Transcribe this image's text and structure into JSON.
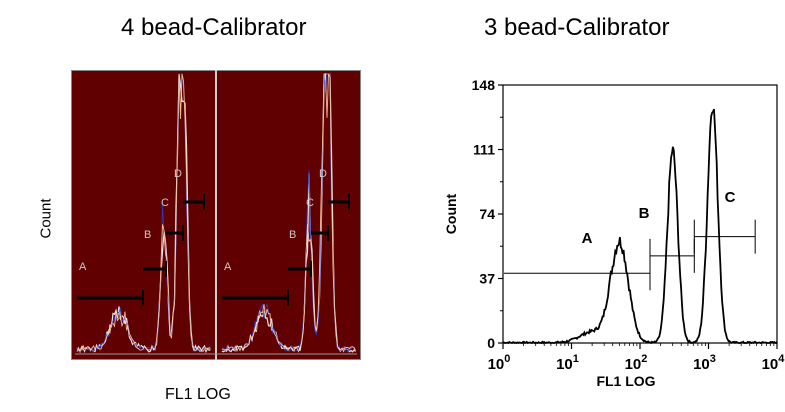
{
  "chart_data": [
    {
      "type": "line",
      "title": "4 bead-Calibrator",
      "xlabel": "FL1 LOG",
      "ylabel": "Count",
      "background": "#600000",
      "line_colors": [
        "#ffffff",
        "#2a3cc8",
        "#ffd0a0"
      ],
      "note": "",
      "panels": 2,
      "gates": [
        {
          "label": "A"
        },
        {
          "label": "B"
        },
        {
          "label": "C"
        },
        {
          "label": "D"
        }
      ]
    },
    {
      "type": "line",
      "title": "3 bead-Calibrator",
      "xlabel": "FL1 LOG",
      "ylabel": "Count",
      "x_scale": "log",
      "xlim": [
        1,
        10000
      ],
      "ylim": [
        0,
        148
      ],
      "yticks": [
        "0",
        "37",
        "74",
        "111",
        "148"
      ],
      "xticks": [
        {
          "base": "10",
          "exp": "0"
        },
        {
          "base": "10",
          "exp": "1"
        },
        {
          "base": "10",
          "exp": "2"
        },
        {
          "base": "10",
          "exp": "3"
        },
        {
          "base": "10",
          "exp": "4"
        }
      ],
      "series": [
        {
          "peaks": [
            {
              "center": 50,
              "height": 57
            },
            {
              "center": 300,
              "height": 109
            },
            {
              "center": 1150,
              "height": 135
            }
          ]
        }
      ],
      "gates": [
        {
          "label": "A",
          "x_start": 1,
          "x_end": 140,
          "y": 40
        },
        {
          "label": "B",
          "x_start": 140,
          "x_end": 620,
          "y": 50
        },
        {
          "label": "C",
          "x_start": 620,
          "x_end": 4800,
          "y": 61
        }
      ]
    }
  ]
}
